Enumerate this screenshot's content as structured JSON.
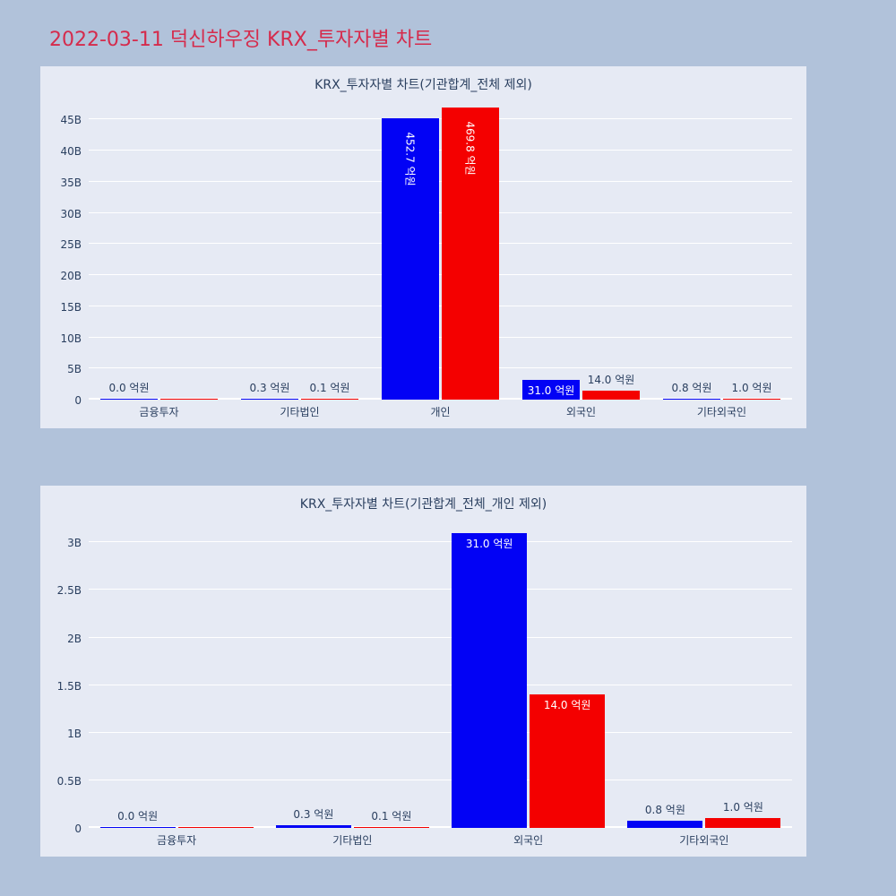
{
  "page_title": "2022-03-11 덕신하우징 KRX_투자자별 차트",
  "colors": {
    "page_bg": "#b1c2da",
    "plot_bg": "#e6eaf4",
    "bar_blue": "#0202f5",
    "bar_red": "#f40000",
    "title_text": "#d52b4c",
    "axis_text": "#2a3f5f",
    "grid": "#ffffff",
    "inside_label": "#ffffff"
  },
  "chart_data": [
    {
      "type": "bar",
      "title": "KRX_투자자별 차트(기관합계_전체 제외)",
      "unit": "억원",
      "categories": [
        "금융투자",
        "기타법인",
        "개인",
        "외국인",
        "기타외국인"
      ],
      "series": [
        {
          "name": "blue",
          "color_key": "bar_blue",
          "values_eok": [
            0.0,
            0.3,
            452.7,
            31.0,
            0.8
          ],
          "labels": [
            "0.0 억원",
            "0.3 억원",
            "452.7 억원",
            "31.0 억원",
            "0.8 억원"
          ],
          "label_pos": [
            "out",
            "out",
            "vin",
            "in",
            "out"
          ]
        },
        {
          "name": "red",
          "color_key": "bar_red",
          "values_eok": [
            0.0,
            0.1,
            469.8,
            14.0,
            1.0
          ],
          "labels": [
            "",
            "0.1 억원",
            "469.8 억원",
            "14.0 억원",
            "1.0 억원"
          ],
          "label_pos": [
            "none",
            "out",
            "vin",
            "out",
            "out"
          ]
        }
      ],
      "ylim": [
        0,
        47.5
      ],
      "yticks": [
        0,
        5,
        10,
        15,
        20,
        25,
        30,
        35,
        40,
        45
      ],
      "ytick_labels": [
        "0",
        "5B",
        "10B",
        "15B",
        "20B",
        "25B",
        "30B",
        "35B",
        "40B",
        "45B"
      ],
      "grid": true,
      "legend": false
    },
    {
      "type": "bar",
      "title": "KRX_투자자별 차트(기관합계_전체_개인 제외)",
      "unit": "억원",
      "categories": [
        "금융투자",
        "기타법인",
        "외국인",
        "기타외국인"
      ],
      "series": [
        {
          "name": "blue",
          "color_key": "bar_blue",
          "values_eok": [
            0.0,
            0.3,
            31.0,
            0.8
          ],
          "labels": [
            "0.0 억원",
            "0.3 억원",
            "31.0 억원",
            "0.8 억원"
          ],
          "label_pos": [
            "out",
            "out",
            "in",
            "out"
          ]
        },
        {
          "name": "red",
          "color_key": "bar_red",
          "values_eok": [
            0.0,
            0.1,
            14.0,
            1.0
          ],
          "labels": [
            "",
            "0.1 억원",
            "14.0 억원",
            "1.0 억원"
          ],
          "label_pos": [
            "none",
            "out",
            "in",
            "out"
          ]
        }
      ],
      "ylim": [
        0,
        3.2
      ],
      "yticks": [
        0,
        0.5,
        1,
        1.5,
        2,
        2.5,
        3
      ],
      "ytick_labels": [
        "0",
        "0.5B",
        "1B",
        "1.5B",
        "2B",
        "2.5B",
        "3B"
      ],
      "grid": true,
      "legend": false
    }
  ]
}
